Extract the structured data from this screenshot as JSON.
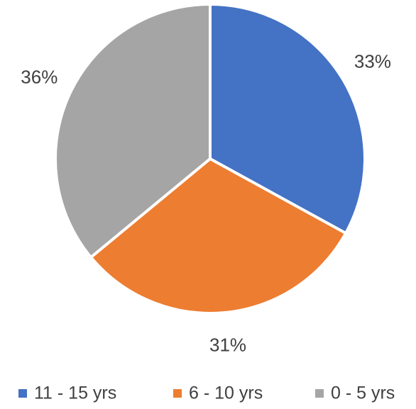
{
  "chart_data": {
    "type": "pie",
    "categories": [
      "11 - 15 yrs",
      "6 - 10 yrs",
      "0 - 5 yrs"
    ],
    "values": [
      33,
      31,
      36
    ],
    "value_labels": [
      "33%",
      "31%",
      "36%"
    ],
    "colors": [
      "#4472c4",
      "#ed7d31",
      "#a5a5a5"
    ],
    "legend": "bottom"
  }
}
